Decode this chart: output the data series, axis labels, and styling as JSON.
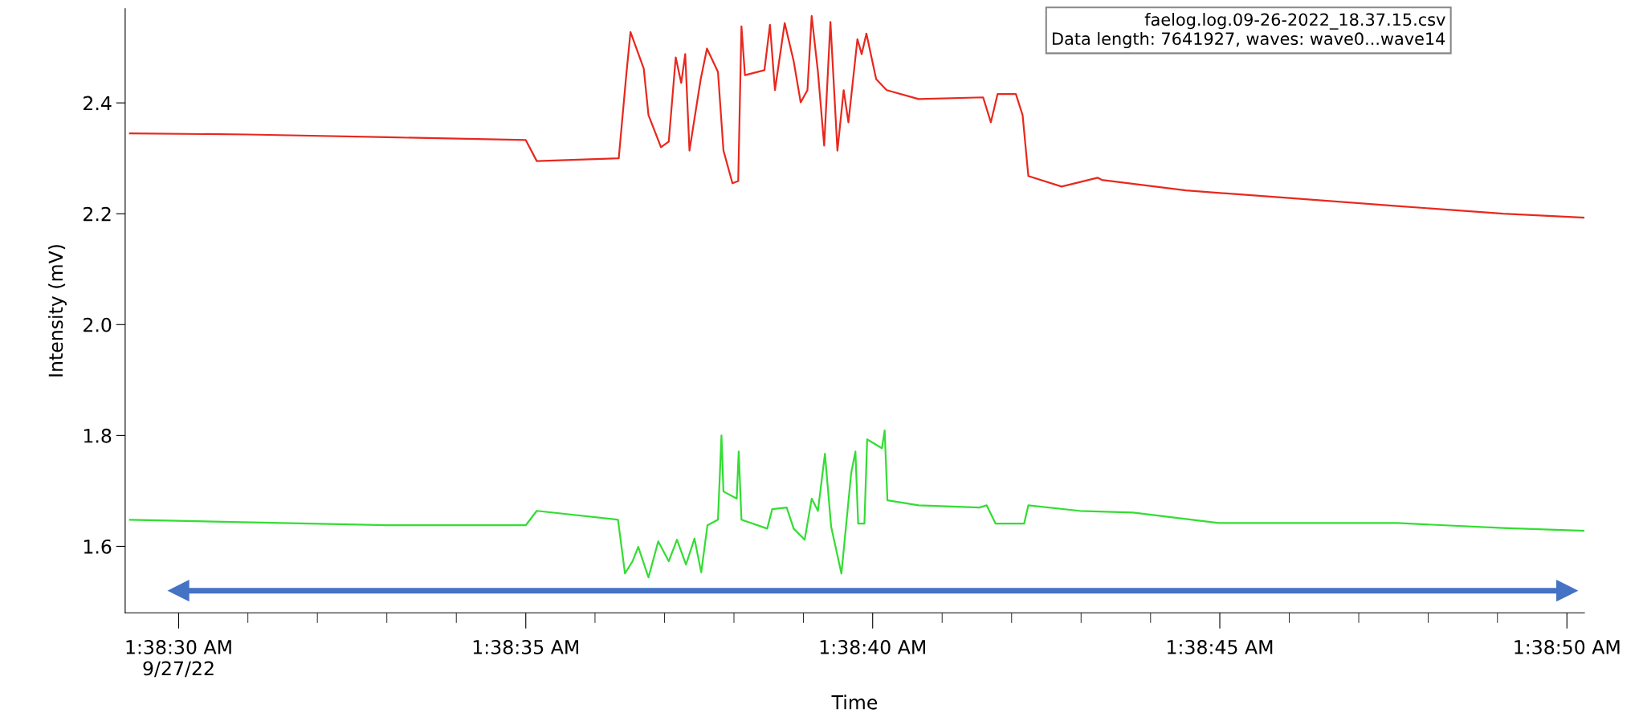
{
  "chart_data": {
    "type": "line",
    "xlabel": "Time",
    "ylabel": "Intensity (mV)",
    "annotations": [
      "faelog.log.09-26-2022_18.37.15.csv\nData length: 7641927, waves: wave0...wave14"
    ],
    "xlim": [
      1.641453,
      1.647292
    ],
    "ylim": [
      1.48,
      2.57
    ],
    "xticks": [
      {
        "value": 1.641667,
        "label": "1:38:30 AM\n9/27/22"
      },
      {
        "value": 1.641944,
        "label": null
      },
      {
        "value": 1.642222,
        "label": null
      },
      {
        "value": 1.6425,
        "label": null
      },
      {
        "value": 1.642778,
        "label": null
      },
      {
        "value": 1.643056,
        "label": "1:38:35 AM"
      },
      {
        "value": 1.643333,
        "label": null
      },
      {
        "value": 1.643611,
        "label": null
      },
      {
        "value": 1.643889,
        "label": null
      },
      {
        "value": 1.644167,
        "label": null
      },
      {
        "value": 1.644444,
        "label": "1:38:40 AM"
      },
      {
        "value": 1.644722,
        "label": null
      },
      {
        "value": 1.645,
        "label": null
      },
      {
        "value": 1.645278,
        "label": null
      },
      {
        "value": 1.645556,
        "label": null
      },
      {
        "value": 1.645833,
        "label": "1:38:45 AM"
      },
      {
        "value": 1.646111,
        "label": null
      },
      {
        "value": 1.646389,
        "label": null
      },
      {
        "value": 1.646667,
        "label": null
      },
      {
        "value": 1.646944,
        "label": null
      },
      {
        "value": 1.647222,
        "label": "1:38:50 AM"
      }
    ],
    "yticks": [
      {
        "value": 1.6,
        "label": "1.6"
      },
      {
        "value": 1.8,
        "label": "1.8"
      },
      {
        "value": 2,
        "label": "2.0"
      },
      {
        "value": 2.2,
        "label": "2.2"
      },
      {
        "value": 2.4,
        "label": "2.4"
      }
    ],
    "grid": false,
    "marker": "none",
    "line_style": "solid",
    "series": [
      {
        "color": "#e8281e",
        "x": [
          1.641472,
          1.641944,
          1.6425,
          1.643056,
          1.6431,
          1.643428,
          1.643458,
          1.643475,
          1.643528,
          1.643547,
          1.643597,
          1.643628,
          1.643656,
          1.643678,
          1.643694,
          1.643711,
          1.643756,
          1.643781,
          1.643825,
          1.643847,
          1.643883,
          1.643906,
          1.643919,
          1.643933,
          1.644011,
          1.644033,
          1.644053,
          1.644092,
          1.644128,
          1.644156,
          1.644183,
          1.6442,
          1.644225,
          1.64425,
          1.644275,
          1.644303,
          1.644328,
          1.644347,
          1.644383,
          1.6444,
          1.644419,
          1.644458,
          1.6445,
          1.644628,
          1.644886,
          1.644917,
          1.644944,
          1.645017,
          1.645044,
          1.645067,
          1.6452,
          1.645344,
          1.645361,
          1.645697,
          1.646122,
          1.646542,
          1.646967,
          1.647292
        ],
        "values": [
          2.345,
          2.343,
          2.338,
          2.333,
          2.295,
          2.3,
          2.45,
          2.528,
          2.462,
          2.378,
          2.32,
          2.33,
          2.482,
          2.436,
          2.488,
          2.314,
          2.443,
          2.498,
          2.456,
          2.314,
          2.255,
          2.259,
          2.538,
          2.45,
          2.459,
          2.541,
          2.423,
          2.544,
          2.475,
          2.401,
          2.423,
          2.557,
          2.456,
          2.323,
          2.546,
          2.314,
          2.423,
          2.365,
          2.515,
          2.488,
          2.525,
          2.443,
          2.423,
          2.407,
          2.41,
          2.365,
          2.416,
          2.416,
          2.378,
          2.268,
          2.249,
          2.265,
          2.261,
          2.242,
          2.228,
          2.214,
          2.2,
          2.193
        ]
      },
      {
        "color": "#33dd33",
        "x": [
          1.641472,
          1.6425,
          1.643056,
          1.6431,
          1.643425,
          1.643453,
          1.643483,
          1.643506,
          1.643547,
          1.643586,
          1.643628,
          1.643661,
          1.643697,
          1.643731,
          1.643758,
          1.643783,
          1.643825,
          1.643839,
          1.643847,
          1.6439,
          1.643908,
          1.643919,
          1.644022,
          1.644042,
          1.6441,
          1.644128,
          1.644172,
          1.6442,
          1.644225,
          1.644253,
          1.644278,
          1.644319,
          1.644358,
          1.644375,
          1.644386,
          1.644411,
          1.644422,
          1.644481,
          1.644492,
          1.644503,
          1.644628,
          1.644872,
          1.6449,
          1.644936,
          1.64505,
          1.645067,
          1.645272,
          1.645486,
          1.645828,
          1.646542,
          1.646967,
          1.647292
        ],
        "values": [
          1.648,
          1.638,
          1.638,
          1.664,
          1.648,
          1.551,
          1.573,
          1.599,
          1.544,
          1.609,
          1.573,
          1.612,
          1.567,
          1.614,
          1.553,
          1.638,
          1.648,
          1.8,
          1.699,
          1.686,
          1.771,
          1.648,
          1.632,
          1.667,
          1.67,
          1.632,
          1.612,
          1.686,
          1.664,
          1.767,
          1.635,
          1.551,
          1.732,
          1.771,
          1.641,
          1.641,
          1.793,
          1.777,
          1.809,
          1.683,
          1.674,
          1.67,
          1.674,
          1.641,
          1.641,
          1.674,
          1.664,
          1.661,
          1.642,
          1.642,
          1.633,
          1.628
        ]
      },
      {
        "color": "#4472c4",
        "marker": "triangle",
        "x": [
          1.641667,
          1.647222
        ],
        "values": [
          1.52,
          1.52
        ]
      }
    ]
  }
}
